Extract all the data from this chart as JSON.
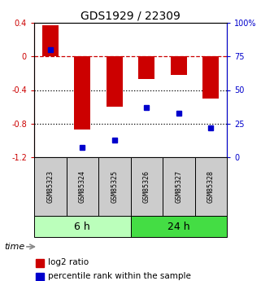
{
  "title": "GDS1929 / 22309",
  "samples": [
    "GSM85323",
    "GSM85324",
    "GSM85325",
    "GSM85326",
    "GSM85327",
    "GSM85328"
  ],
  "log2_ratio": [
    0.37,
    -0.87,
    -0.6,
    -0.27,
    -0.22,
    -0.5
  ],
  "percentile_rank": [
    80,
    7,
    13,
    37,
    33,
    22
  ],
  "bar_color": "#cc0000",
  "dot_color": "#0000cc",
  "ylim_left": [
    -1.2,
    0.4
  ],
  "ylim_right": [
    0,
    100
  ],
  "yticks_left": [
    0.4,
    0.0,
    -0.4,
    -0.8,
    -1.2
  ],
  "yticks_right": [
    100,
    75,
    50,
    25,
    0
  ],
  "group1_label": "6 h",
  "group2_label": "24 h",
  "group1_color": "#bbffbb",
  "group2_color": "#44dd44",
  "sample_box_color": "#cccccc",
  "legend_label1": "log2 ratio",
  "legend_label2": "percentile rank within the sample",
  "time_label": "time",
  "bar_width": 0.5,
  "title_fontsize": 10,
  "tick_fontsize": 7,
  "sample_fontsize": 6,
  "group_fontsize": 9,
  "legend_fontsize": 7.5
}
